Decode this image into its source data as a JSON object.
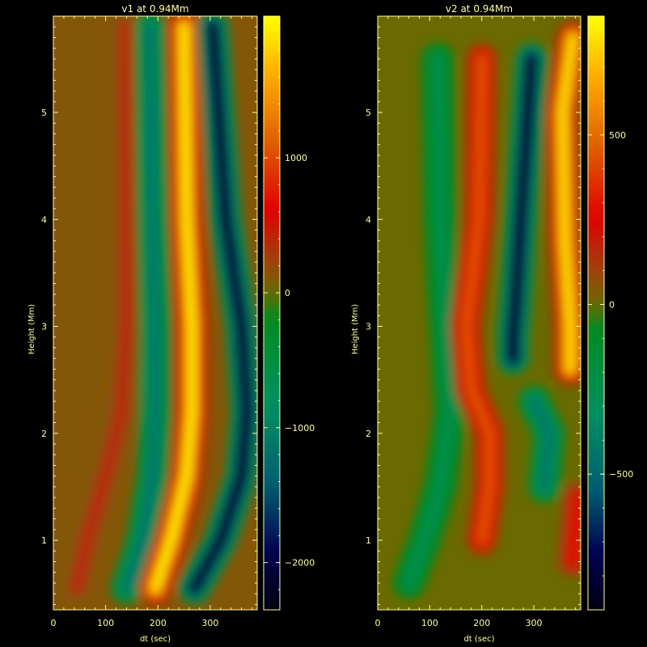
{
  "figure": {
    "background": "#000000",
    "text_color": "#ffffa0"
  },
  "chart_data": [
    {
      "type": "heatmap",
      "title": "v1 at 0.94Mm",
      "xlabel": "dt (sec)",
      "ylabel": "Height (Mm)",
      "xlim": [
        0,
        390
      ],
      "ylim": [
        0.35,
        5.9
      ],
      "xticks": [
        0,
        100,
        200,
        300
      ],
      "yticks": [
        1,
        2,
        3,
        4,
        5
      ],
      "colorbar": {
        "range": [
          -2350,
          2050
        ],
        "ticks": [
          -2000,
          -1000,
          0,
          1000
        ],
        "tick_labels": [
          "−2000",
          "−1000",
          "0",
          "1000"
        ]
      },
      "features": [
        {
          "kind": "ridge",
          "sign": "positive",
          "peak": 400,
          "points": [
            [
              45,
              0.55
            ],
            [
              65,
              1.0
            ],
            [
              100,
              1.6
            ],
            [
              130,
              2.2
            ],
            [
              140,
              3.0
            ],
            [
              140,
              5.8
            ]
          ]
        },
        {
          "kind": "ridge",
          "sign": "negative",
          "peak": -1200,
          "points": [
            [
              140,
              0.55
            ],
            [
              170,
              1.0
            ],
            [
              190,
              1.6
            ],
            [
              195,
              2.2
            ],
            [
              195,
              3.0
            ],
            [
              190,
              4.0
            ],
            [
              185,
              5.8
            ]
          ]
        },
        {
          "kind": "ridge",
          "sign": "positive",
          "peak": 2000,
          "points": [
            [
              195,
              0.55
            ],
            [
              225,
              1.0
            ],
            [
              255,
              1.6
            ],
            [
              265,
              2.2
            ],
            [
              265,
              3.0
            ],
            [
              255,
              4.0
            ],
            [
              250,
              5.8
            ]
          ]
        },
        {
          "kind": "ridge",
          "sign": "negative",
          "peak": -2300,
          "points": [
            [
              270,
              0.55
            ],
            [
              320,
              1.0
            ],
            [
              360,
              1.6
            ],
            [
              370,
              2.2
            ],
            [
              360,
              3.0
            ],
            [
              330,
              4.0
            ],
            [
              305,
              5.8
            ]
          ]
        }
      ]
    },
    {
      "type": "heatmap",
      "title": "v2 at 0.94Mm",
      "xlabel": "dt (sec)",
      "ylabel": "Height (Mm)",
      "xlim": [
        0,
        390
      ],
      "ylim": [
        0.35,
        5.9
      ],
      "xticks": [
        0,
        100,
        200,
        300
      ],
      "yticks": [
        1,
        2,
        3,
        4,
        5
      ],
      "colorbar": {
        "range": [
          -900,
          850
        ],
        "ticks": [
          -500,
          0,
          500
        ],
        "tick_labels": [
          "−500",
          "0",
          "500"
        ]
      },
      "features": [
        {
          "kind": "ridge",
          "sign": "negative",
          "peak": -250,
          "points": [
            [
              60,
              0.6
            ],
            [
              90,
              1.0
            ],
            [
              120,
              1.5
            ],
            [
              140,
              2.2
            ],
            [
              130,
              3.0
            ],
            [
              120,
              4.0
            ],
            [
              115,
              5.5
            ]
          ]
        },
        {
          "kind": "ridge",
          "sign": "positive",
          "peak": 450,
          "points": [
            [
              200,
              1.0
            ],
            [
              215,
              1.5
            ],
            [
              215,
              2.0
            ],
            [
              180,
              2.4
            ],
            [
              170,
              3.0
            ],
            [
              195,
              4.0
            ],
            [
              200,
              5.5
            ]
          ]
        },
        {
          "kind": "ridge",
          "sign": "negative",
          "peak": -900,
          "points": [
            [
              260,
              2.7
            ],
            [
              260,
              2.9
            ],
            [
              265,
              3.2
            ],
            [
              275,
              4.0
            ],
            [
              295,
              5.5
            ]
          ]
        },
        {
          "kind": "ridge",
          "sign": "negative",
          "peak": -450,
          "points": [
            [
              320,
              1.5
            ],
            [
              330,
              2.0
            ],
            [
              300,
              2.3
            ]
          ]
        },
        {
          "kind": "ridge",
          "sign": "positive",
          "peak": 800,
          "points": [
            [
              370,
              2.6
            ],
            [
              370,
              3.0
            ],
            [
              360,
              3.8
            ],
            [
              355,
              5.0
            ],
            [
              375,
              5.7
            ]
          ]
        },
        {
          "kind": "ridge",
          "sign": "positive",
          "peak": 300,
          "points": [
            [
              375,
              0.8
            ],
            [
              385,
              1.4
            ]
          ]
        }
      ]
    }
  ]
}
